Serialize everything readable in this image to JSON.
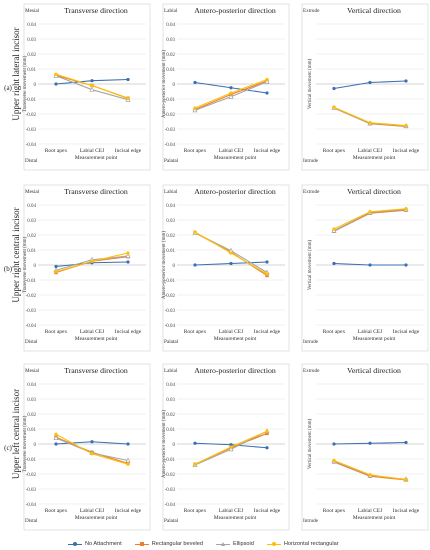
{
  "series_styles": [
    {
      "name": "No Attachment",
      "color": "#3a6fb0",
      "marker": "circle"
    },
    {
      "name": "Rectangular beveled",
      "color": "#ed7d31",
      "marker": "square"
    },
    {
      "name": "Ellipsoid",
      "color": "#a5a5a5",
      "marker": "triangle"
    },
    {
      "name": "Horizontal rectangular",
      "color": "#ffc000",
      "marker": "circle"
    }
  ],
  "rows": [
    {
      "label": "(a)",
      "tooth": "Upper right lateral incisor"
    },
    {
      "label": "(b)",
      "tooth": "Upper right central incisor"
    },
    {
      "label": "(c)",
      "tooth": "Upper left central incisor"
    }
  ],
  "chart_data": [
    {
      "type": "line",
      "row": 0,
      "col": 0,
      "title": "Transverse direction",
      "ylabel": "Transverse movement (mm)",
      "xlabel": "Measurement point",
      "top_label": "Mesial",
      "bottom_label": "Distal",
      "categories": [
        "Root apex",
        "Labial CEJ",
        "Incisal edge"
      ],
      "ylim": [
        -0.04,
        0.04
      ],
      "ticks": [
        "0.04",
        "0.03",
        "0.02",
        "0.01",
        "0",
        "-0.01",
        "-0.02",
        "-0.03",
        "-0.04"
      ],
      "show_ticks": true,
      "series": [
        {
          "name": "No Attachment",
          "values": [
            0.0,
            0.0022,
            0.003
          ]
        },
        {
          "name": "Rectangular beveled",
          "values": [
            0.0058,
            -0.001,
            -0.0095
          ]
        },
        {
          "name": "Ellipsoid",
          "values": [
            0.0055,
            -0.0038,
            -0.0105
          ]
        },
        {
          "name": "Horizontal rectangular",
          "values": [
            0.0065,
            -0.001,
            -0.0097
          ]
        }
      ]
    },
    {
      "type": "line",
      "row": 0,
      "col": 1,
      "title": "Antero-posterior direction",
      "ylabel": "Antero-posterior movement (mm)",
      "xlabel": "Measurement point",
      "top_label": "Labial",
      "bottom_label": "Palatal",
      "categories": [
        "Root apex",
        "Labial CEJ",
        "Incisal edge"
      ],
      "ylim": [
        -0.04,
        0.04
      ],
      "ticks": [
        "0.04",
        "0.03",
        "0.02",
        "0.01",
        "0",
        "-0.01",
        "-0.02",
        "-0.03",
        "-0.04"
      ],
      "show_ticks": true,
      "series": [
        {
          "name": "No Attachment",
          "values": [
            0.001,
            -0.0025,
            -0.006
          ]
        },
        {
          "name": "Rectangular beveled",
          "values": [
            -0.017,
            -0.007,
            0.002
          ]
        },
        {
          "name": "Ellipsoid",
          "values": [
            -0.0175,
            -0.0085,
            0.0015
          ]
        },
        {
          "name": "Horizontal rectangular",
          "values": [
            -0.016,
            -0.006,
            0.003
          ]
        }
      ]
    },
    {
      "type": "line",
      "row": 0,
      "col": 2,
      "title": "Vertical direction",
      "ylabel": "Vertical movement (mm)",
      "xlabel": "Measurement point",
      "top_label": "Extrude",
      "bottom_label": "Intrude",
      "categories": [
        "Root apex",
        "Labial CEJ",
        "Incisal edge"
      ],
      "ylim": [
        -0.04,
        0.04
      ],
      "ticks": [
        "0.04",
        "0.03",
        "0.02",
        "0.01",
        "0",
        "-0.01",
        "-0.02",
        "-0.03",
        "-0.04"
      ],
      "show_ticks": false,
      "series": [
        {
          "name": "No Attachment",
          "values": [
            -0.003,
            0.001,
            0.002
          ]
        },
        {
          "name": "Rectangular beveled",
          "values": [
            -0.016,
            -0.0265,
            -0.0283
          ]
        },
        {
          "name": "Ellipsoid",
          "values": [
            -0.0158,
            -0.0262,
            -0.028
          ]
        },
        {
          "name": "Horizontal rectangular",
          "values": [
            -0.0155,
            -0.0258,
            -0.0277
          ]
        }
      ]
    },
    {
      "type": "line",
      "row": 1,
      "col": 0,
      "title": "Transverse direction",
      "ylabel": "Transverse movement (mm)",
      "xlabel": "Measurement point",
      "top_label": "Mesial",
      "bottom_label": "Distal",
      "categories": [
        "Root apex",
        "Labial CEJ",
        "Incisal edge"
      ],
      "ylim": [
        -0.04,
        0.04
      ],
      "ticks": [
        "0.04",
        "0.03",
        "0.02",
        "0.01",
        "0",
        "-0.01",
        "-0.02",
        "-0.03",
        "-0.04"
      ],
      "show_ticks": true,
      "series": [
        {
          "name": "No Attachment",
          "values": [
            -0.001,
            0.0015,
            0.002
          ]
        },
        {
          "name": "Rectangular beveled",
          "values": [
            -0.005,
            0.0025,
            0.0055
          ]
        },
        {
          "name": "Ellipsoid",
          "values": [
            -0.0035,
            0.0035,
            0.006
          ]
        },
        {
          "name": "Horizontal rectangular",
          "values": [
            -0.0045,
            0.0025,
            0.008
          ]
        }
      ]
    },
    {
      "type": "line",
      "row": 1,
      "col": 1,
      "title": "Antero-posterior direction",
      "ylabel": "Antero-posterior movement (mm)",
      "xlabel": "Measurement point",
      "top_label": "Labial",
      "bottom_label": "Palatal",
      "categories": [
        "Root apex",
        "Labial CEJ",
        "Incisal edge"
      ],
      "ylim": [
        -0.04,
        0.04
      ],
      "ticks": [
        "0.04",
        "0.03",
        "0.02",
        "0.01",
        "0",
        "-0.01",
        "-0.02",
        "-0.03",
        "-0.04"
      ],
      "show_ticks": true,
      "series": [
        {
          "name": "No Attachment",
          "values": [
            0.0,
            0.001,
            0.002
          ]
        },
        {
          "name": "Rectangular beveled",
          "values": [
            0.0215,
            0.0085,
            -0.007
          ]
        },
        {
          "name": "Ellipsoid",
          "values": [
            0.0215,
            0.0095,
            -0.005
          ]
        },
        {
          "name": "Horizontal rectangular",
          "values": [
            0.022,
            0.008,
            -0.006
          ]
        }
      ]
    },
    {
      "type": "line",
      "row": 1,
      "col": 2,
      "title": "Vertical direction",
      "ylabel": "Vertical movement (mm)",
      "xlabel": "Measurement point",
      "top_label": "Extrude",
      "bottom_label": "Intrude",
      "categories": [
        "Root apex",
        "Labial CEJ",
        "Incisal edge"
      ],
      "ylim": [
        -0.04,
        0.04
      ],
      "ticks": [
        "0.04",
        "0.03",
        "0.02",
        "0.01",
        "0",
        "-0.01",
        "-0.02",
        "-0.03",
        "-0.04"
      ],
      "show_ticks": false,
      "series": [
        {
          "name": "No Attachment",
          "values": [
            0.001,
            0.0,
            0.0
          ]
        },
        {
          "name": "Rectangular beveled",
          "values": [
            0.0225,
            0.0345,
            0.0365
          ]
        },
        {
          "name": "Ellipsoid",
          "values": [
            0.0228,
            0.035,
            0.037
          ]
        },
        {
          "name": "Horizontal rectangular",
          "values": [
            0.024,
            0.0355,
            0.0375
          ]
        }
      ]
    },
    {
      "type": "line",
      "row": 2,
      "col": 0,
      "title": "Transverse direction",
      "ylabel": "Transverse movement (mm)",
      "xlabel": "Measurement point",
      "top_label": "Mesial",
      "bottom_label": "Distal",
      "categories": [
        "Root apex",
        "Labial CEJ",
        "Incisal edge"
      ],
      "ylim": [
        -0.04,
        0.04
      ],
      "ticks": [
        "0.04",
        "0.03",
        "0.02",
        "0.01",
        "0",
        "-0.01",
        "-0.02",
        "-0.03",
        "-0.04"
      ],
      "show_ticks": true,
      "series": [
        {
          "name": "No Attachment",
          "values": [
            0.0,
            0.0015,
            0.0
          ]
        },
        {
          "name": "Rectangular beveled",
          "values": [
            0.0045,
            -0.0055,
            -0.013
          ]
        },
        {
          "name": "Ellipsoid",
          "values": [
            0.004,
            -0.006,
            -0.011
          ]
        },
        {
          "name": "Horizontal rectangular",
          "values": [
            0.0065,
            -0.0065,
            -0.0135
          ]
        }
      ]
    },
    {
      "type": "line",
      "row": 2,
      "col": 1,
      "title": "Antero-posterior direction",
      "ylabel": "Antero-posterior movement (mm)",
      "xlabel": "Measurement point",
      "top_label": "Labial",
      "bottom_label": "Palatal",
      "categories": [
        "Root apex",
        "Labial CEJ",
        "Incisal edge"
      ],
      "ylim": [
        -0.04,
        0.04
      ],
      "ticks": [
        "0.04",
        "0.03",
        "0.02",
        "0.01",
        "0",
        "-0.01",
        "-0.02",
        "-0.03",
        "-0.04"
      ],
      "show_ticks": true,
      "series": [
        {
          "name": "No Attachment",
          "values": [
            0.0005,
            -0.0005,
            -0.0025
          ]
        },
        {
          "name": "Rectangular beveled",
          "values": [
            -0.0135,
            -0.0025,
            0.007
          ]
        },
        {
          "name": "Ellipsoid",
          "values": [
            -0.014,
            -0.0035,
            0.0085
          ]
        },
        {
          "name": "Horizontal rectangular",
          "values": [
            -0.0135,
            -0.002,
            0.0085
          ]
        }
      ]
    },
    {
      "type": "line",
      "row": 2,
      "col": 2,
      "title": "Vertical direction",
      "ylabel": "Vertical movement (mm)",
      "xlabel": "Measurement point",
      "top_label": "Extrude",
      "bottom_label": "Intrude",
      "categories": [
        "Root apex",
        "Labial CEJ",
        "Incisal edge"
      ],
      "ylim": [
        -0.04,
        0.04
      ],
      "ticks": [
        "0.04",
        "0.03",
        "0.02",
        "0.01",
        "0",
        "-0.01",
        "-0.02",
        "-0.03",
        "-0.04"
      ],
      "show_ticks": false,
      "series": [
        {
          "name": "No Attachment",
          "values": [
            0.0,
            0.0005,
            0.001
          ]
        },
        {
          "name": "Rectangular beveled",
          "values": [
            -0.012,
            -0.0215,
            -0.024
          ]
        },
        {
          "name": "Ellipsoid",
          "values": [
            -0.0115,
            -0.021,
            -0.0235
          ]
        },
        {
          "name": "Horizontal rectangular",
          "values": [
            -0.011,
            -0.0205,
            -0.0238
          ]
        }
      ]
    }
  ]
}
